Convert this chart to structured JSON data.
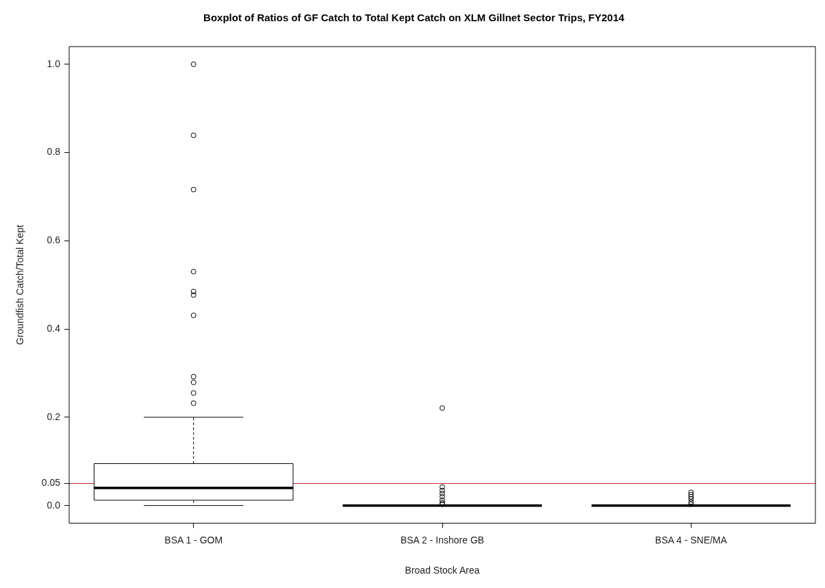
{
  "chart_data": {
    "type": "box",
    "title": "Boxplot of Ratios of GF Catch to Total Kept Catch on XLM Gillnet Sector Trips, FY2014",
    "xlabel": "Broad Stock Area",
    "ylabel": "Groundfish Catch/Total Kept",
    "categories": [
      "BSA 1 - GOM",
      "BSA 2 - Inshore GB",
      "BSA 4 - SNE/MA"
    ],
    "boxes": [
      {
        "low": 0,
        "q1": 0.012,
        "median": 0.04,
        "q3": 0.095,
        "high": 0.2,
        "outliers": [
          1.0,
          0.839,
          0.716,
          0.53,
          0.485,
          0.477,
          0.431,
          0.292,
          0.279,
          0.255,
          0.232
        ]
      },
      {
        "low": 0,
        "q1": 0,
        "median": 0,
        "q3": 0,
        "high": 0,
        "outliers": [
          0.221,
          0.042,
          0.034,
          0.027,
          0.02,
          0.012,
          0.006,
          0.003
        ]
      },
      {
        "low": 0,
        "q1": 0,
        "median": 0,
        "q3": 0,
        "high": 0,
        "outliers": [
          0.03,
          0.025,
          0.02,
          0.015,
          0.008,
          0.003
        ]
      }
    ],
    "ylim": [
      -0.04,
      1.04
    ],
    "yticks": [
      {
        "value": 0,
        "label": "0.0"
      },
      0.05,
      0.2,
      0.4,
      0.6,
      0.8,
      {
        "value": 1,
        "label": "1.0"
      }
    ],
    "ref_lines": [
      {
        "axis": "y",
        "value": 0.05,
        "color": "#cc2222"
      }
    ],
    "grid": false,
    "legend": false,
    "marker": "circle"
  }
}
